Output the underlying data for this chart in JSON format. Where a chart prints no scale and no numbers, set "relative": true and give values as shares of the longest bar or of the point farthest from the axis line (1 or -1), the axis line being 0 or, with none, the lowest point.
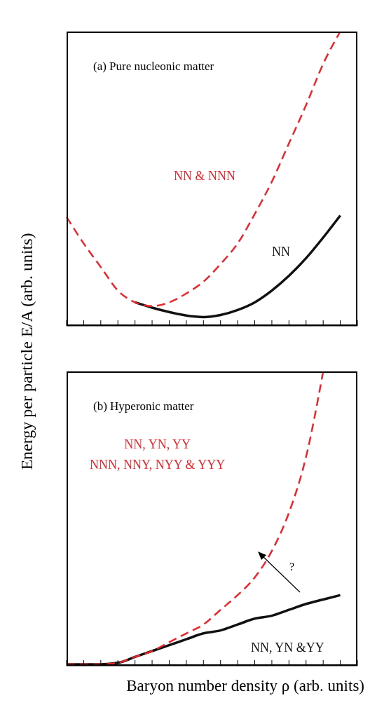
{
  "chart_data": [
    {
      "type": "line",
      "relative": true,
      "ylabel": "Energy per particle  E/A (arb. units)",
      "annotations": [
        "(a) Pure nucleonic matter"
      ],
      "categories": [
        null,
        null,
        null,
        null,
        null,
        null,
        null,
        null,
        null,
        null,
        null,
        null,
        null,
        null,
        null,
        null,
        null,
        null
      ],
      "marker": "none",
      "series": [
        {
          "name": "NN & NNN",
          "color": "#e8262b",
          "line_style": "dashed",
          "values": [
            0.37,
            0.28,
            0.2,
            0.12,
            0.08,
            0.067,
            0.08,
            0.11,
            0.15,
            0.21,
            0.28,
            0.38,
            0.49,
            0.62,
            0.75,
            0.89,
            1,
            null
          ]
        },
        {
          "name": "NN",
          "color": "#111111",
          "line_style": "solid",
          "values": [
            null,
            null,
            null,
            null,
            0.08,
            0.062,
            0.047,
            0.035,
            0.03,
            0.037,
            0.054,
            0.08,
            0.12,
            0.17,
            0.23,
            0.3,
            0.375,
            null
          ]
        }
      ]
    },
    {
      "type": "line",
      "relative": true,
      "xlabel": "Baryon number density ρ (arb. units)",
      "annotations": [
        "(b) Hyperonic matter",
        "?"
      ],
      "categories": [
        null,
        null,
        null,
        null,
        null,
        null,
        null,
        null,
        null,
        null,
        null,
        null,
        null,
        null,
        null,
        null,
        null,
        null
      ],
      "marker": "none",
      "series": [
        {
          "name": "NN, YN, YY\nNNN, NNY, NYY & YYY",
          "color": "#e8262b",
          "line_style": "dashed",
          "values": [
            0.005,
            0.005,
            0.005,
            0.01,
            0.03,
            0.05,
            0.08,
            0.11,
            0.14,
            0.19,
            0.24,
            0.3,
            0.39,
            0.52,
            0.71,
            1,
            null,
            null
          ]
        },
        {
          "name": "NN, YN &YY",
          "color": "#111111",
          "line_style": "solid",
          "values": [
            0.005,
            0.005,
            0.005,
            0.01,
            0.03,
            0.05,
            0.07,
            0.09,
            0.11,
            0.12,
            0.14,
            0.16,
            0.17,
            0.19,
            0.21,
            0.225,
            0.24,
            null
          ]
        }
      ]
    }
  ]
}
